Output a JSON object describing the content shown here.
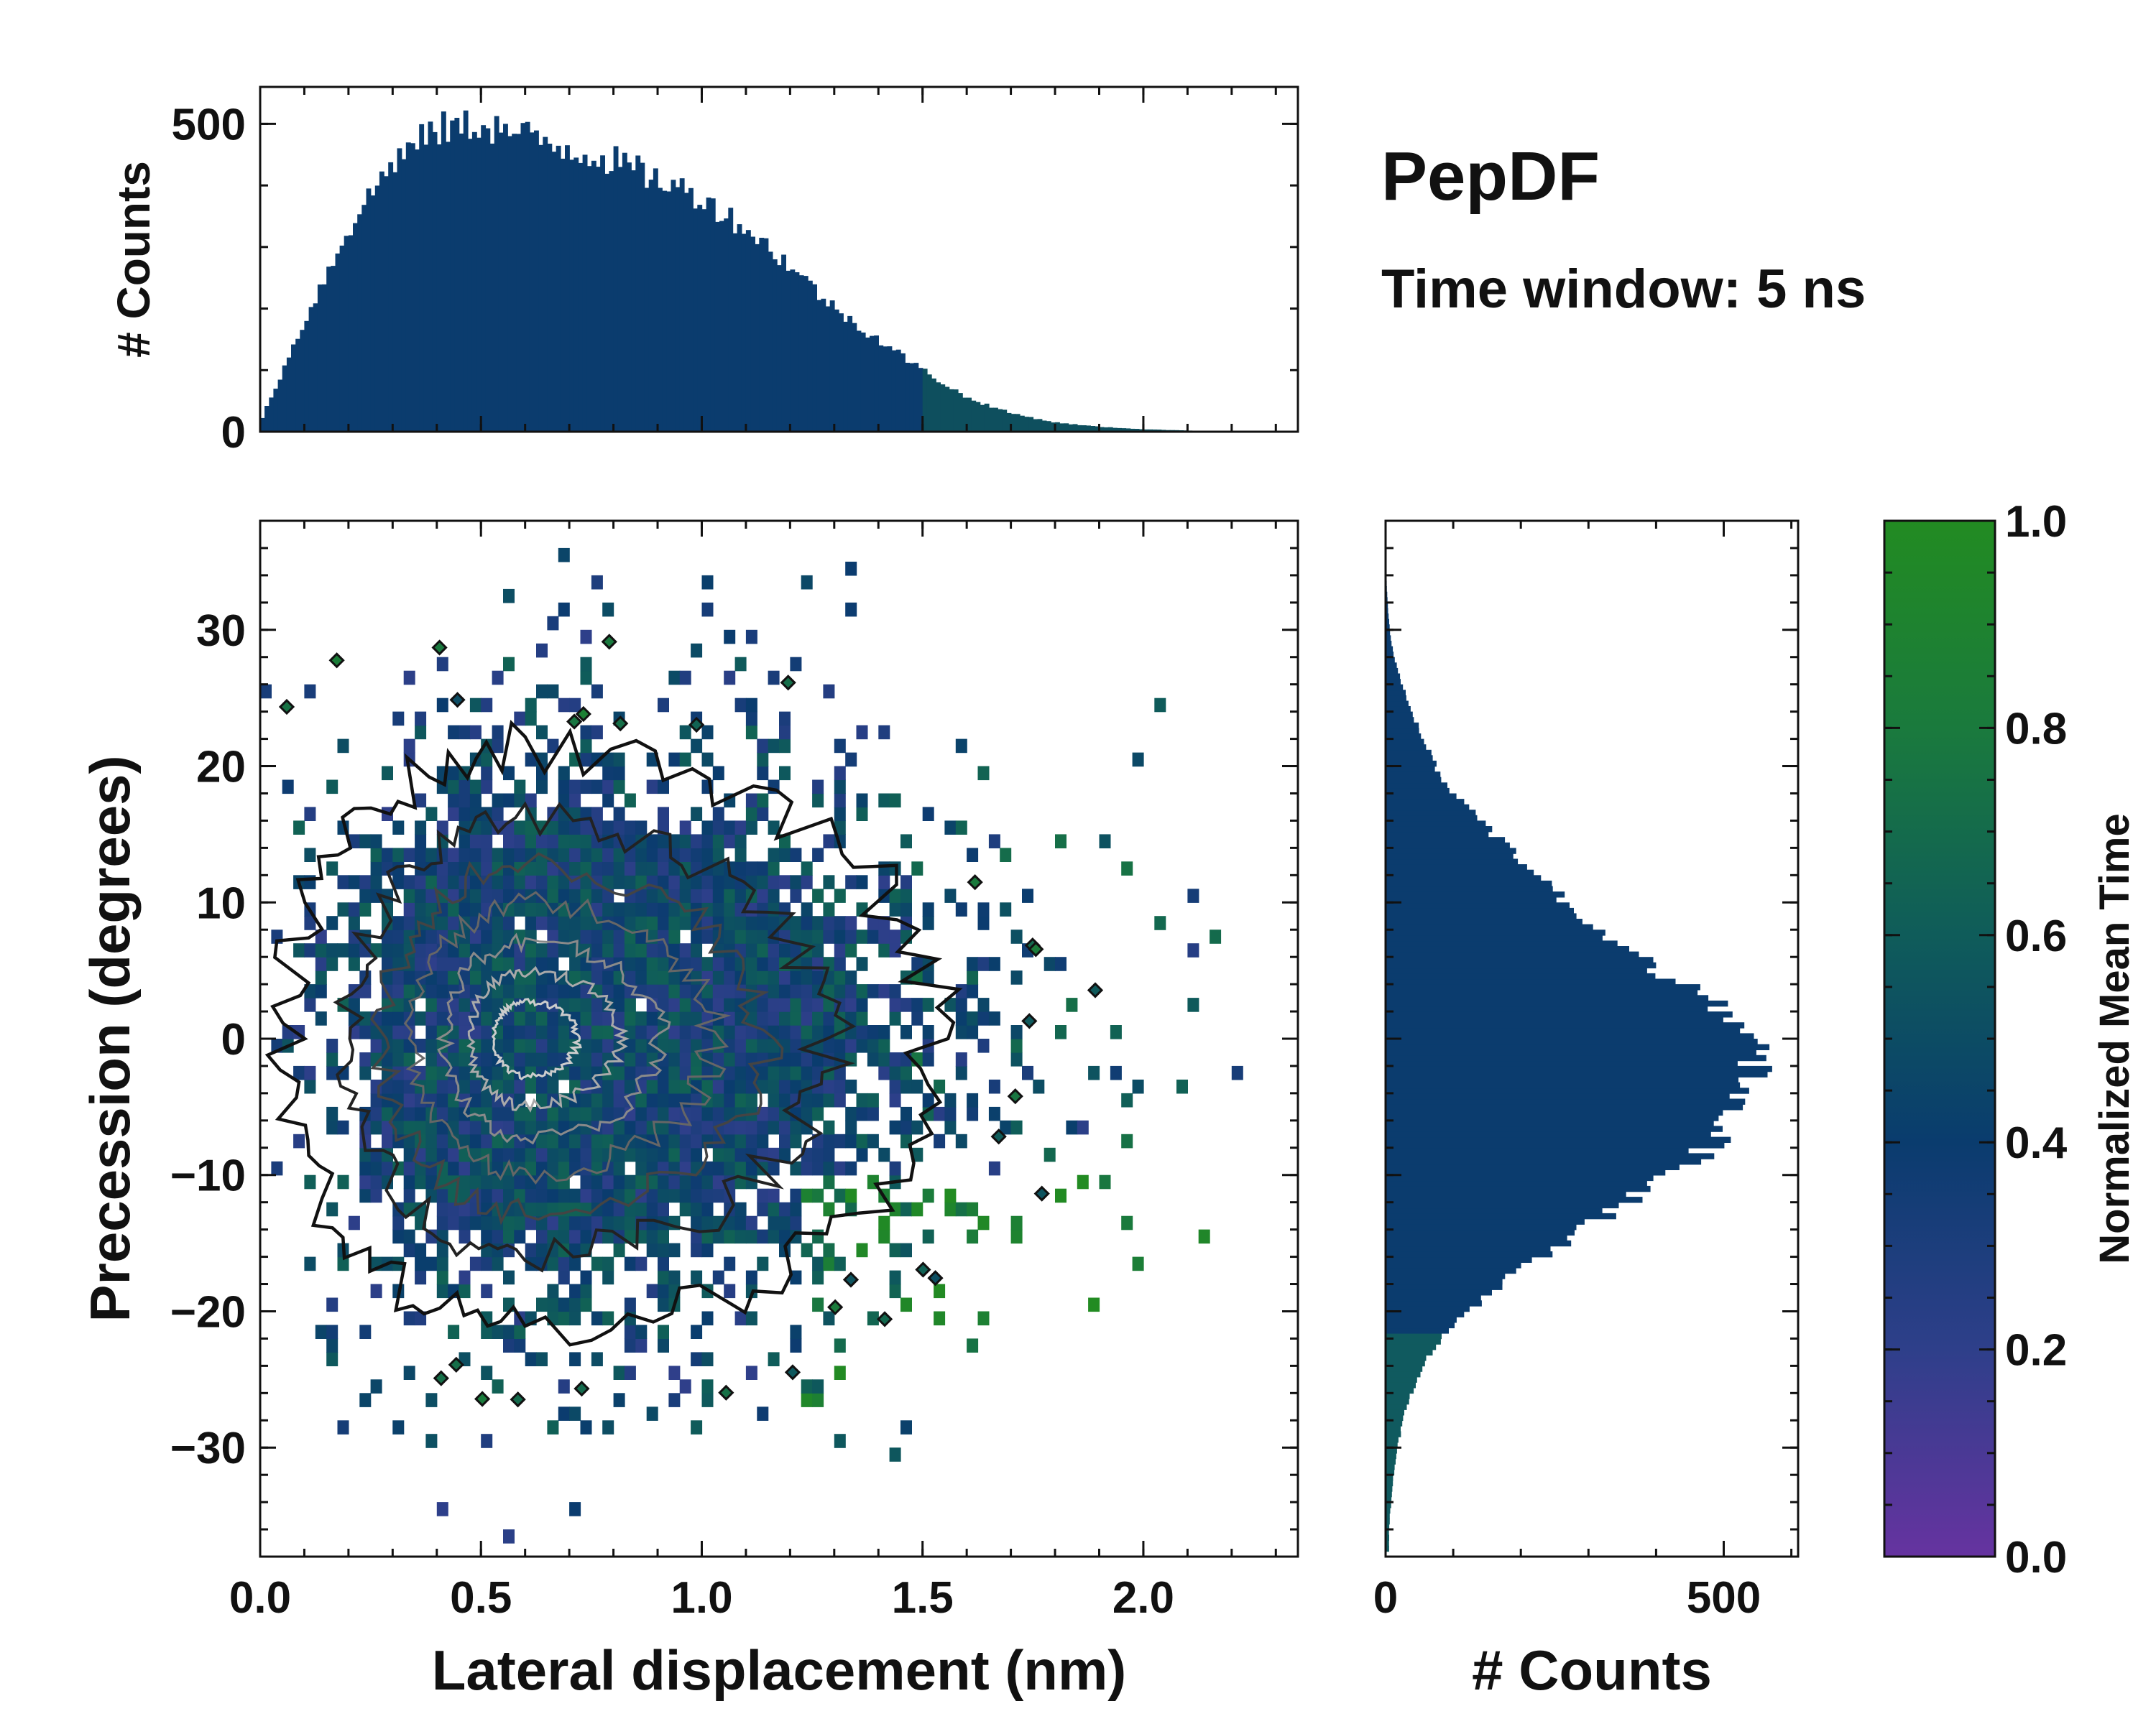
{
  "chart_data": [
    {
      "type": "heatmap",
      "name": "main-2d-histogram",
      "xlabel": "Lateral displacement (nm)",
      "ylabel": "Precession (degrees)",
      "xlim": [
        0.0,
        2.35
      ],
      "ylim": [
        -38,
        38
      ],
      "xticks": [
        0.0,
        0.5,
        1.0,
        1.5,
        2.0
      ],
      "xtick_labels": [
        "0.0",
        "0.5",
        "1.0",
        "1.5",
        "2.0"
      ],
      "yticks": [
        -30,
        -20,
        -10,
        0,
        10,
        20,
        30
      ],
      "ytick_labels": [
        "−30",
        "−20",
        "−10",
        "0",
        "10",
        "20",
        "30"
      ],
      "color_meaning": "normalized mean time per bin",
      "density_center": {
        "x": 0.6,
        "y": 0
      },
      "density_spread": {
        "x_sd": 0.35,
        "y_sd": 11
      },
      "contours": "black outer contours, grey/white inner density contours",
      "notes": "late-time (green) region near x 1.3-1.7, y -15 to -25"
    },
    {
      "type": "bar",
      "name": "top-histogram",
      "ylabel": "# Counts",
      "xlim": [
        0.0,
        2.35
      ],
      "ylim": [
        0,
        560
      ],
      "yticks": [
        0,
        500
      ],
      "ytick_labels": [
        "0",
        "500"
      ],
      "x_bins": [
        0.0,
        0.1,
        0.2,
        0.3,
        0.4,
        0.5,
        0.6,
        0.7,
        0.8,
        0.9,
        1.0,
        1.1,
        1.2,
        1.3,
        1.4,
        1.5,
        1.6,
        1.7,
        1.8,
        1.9,
        2.0,
        2.1,
        2.2,
        2.3
      ],
      "values": [
        15,
        180,
        330,
        440,
        490,
        500,
        480,
        460,
        440,
        410,
        380,
        330,
        270,
        200,
        150,
        100,
        55,
        30,
        15,
        8,
        4,
        2,
        1,
        0
      ]
    },
    {
      "type": "bar",
      "name": "right-histogram",
      "orientation": "horizontal",
      "xlabel": "# Counts",
      "xlim": [
        0,
        610
      ],
      "ylim": [
        -38,
        38
      ],
      "xticks": [
        0,
        500
      ],
      "xtick_labels": [
        "0",
        "500"
      ],
      "y_bins": [
        -36,
        -34,
        -32,
        -30,
        -28,
        -26,
        -24,
        -22,
        -20,
        -18,
        -16,
        -14,
        -12,
        -10,
        -8,
        -6,
        -4,
        -2,
        0,
        2,
        4,
        6,
        8,
        10,
        12,
        14,
        16,
        18,
        20,
        22,
        24,
        26,
        28,
        30,
        32,
        34,
        36
      ],
      "values": [
        5,
        8,
        12,
        18,
        25,
        38,
        55,
        80,
        120,
        170,
        230,
        290,
        360,
        420,
        480,
        520,
        540,
        545,
        540,
        500,
        440,
        380,
        320,
        270,
        220,
        180,
        140,
        100,
        75,
        55,
        38,
        25,
        12,
        6,
        3,
        1,
        0
      ]
    },
    {
      "type": "colorbar",
      "name": "colorbar",
      "label": "Normalized Mean Time",
      "range": [
        0.0,
        1.0
      ],
      "ticks": [
        0.0,
        0.2,
        0.4,
        0.6,
        0.8,
        1.0
      ],
      "tick_labels": [
        "0.0",
        "0.2",
        "0.4",
        "0.6",
        "0.8",
        "1.0"
      ],
      "colors": [
        "#6633a0",
        "#2e3f8a",
        "#0a3c6e",
        "#0f5c5a",
        "#1a7a3d",
        "#228b22"
      ]
    }
  ],
  "annotations": {
    "title": "PepDF",
    "subtitle": "Time window: 5 ns"
  }
}
